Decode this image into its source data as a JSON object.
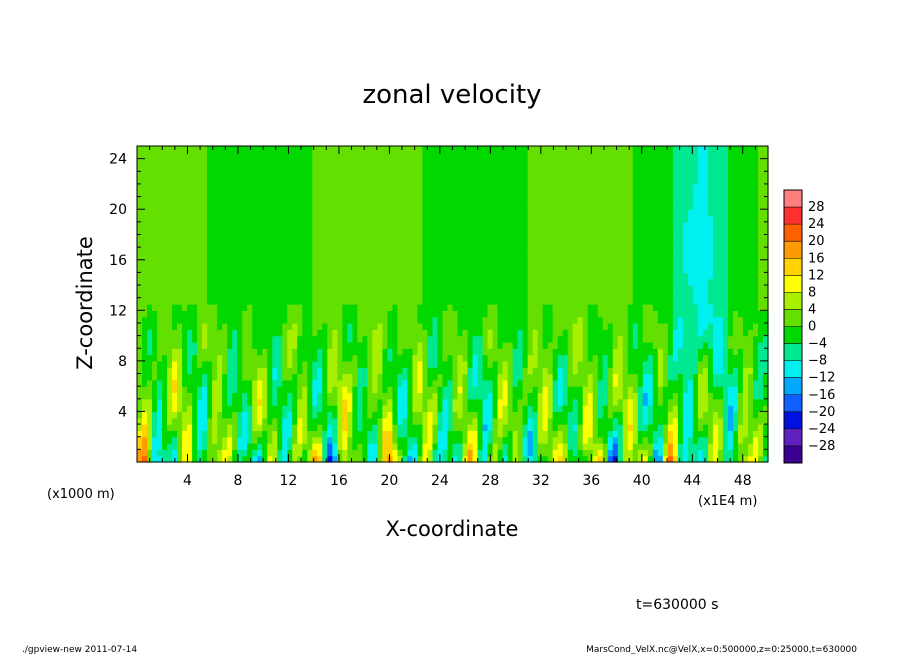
{
  "chart_data": {
    "type": "heatmap",
    "title": "zonal velocity",
    "xlabel": "X-coordinate",
    "ylabel": "Z-coordinate",
    "x_unit_left": "(x1000 m)",
    "x_unit_right": "(x1E4 m)",
    "xlim": [
      0,
      50
    ],
    "ylim": [
      0,
      25
    ],
    "x_ticks": [
      4,
      8,
      12,
      16,
      20,
      24,
      28,
      32,
      36,
      40,
      44,
      48
    ],
    "y_ticks": [
      4,
      8,
      12,
      16,
      20,
      24
    ],
    "colorbar": {
      "levels": [
        28,
        24,
        20,
        16,
        12,
        8,
        4,
        0,
        -4,
        -8,
        -12,
        -16,
        -20,
        -24,
        -28
      ],
      "colors": [
        "#ff7f7f",
        "#ff3030",
        "#ff6000",
        "#ff9a00",
        "#ffd200",
        "#ffff00",
        "#a8f000",
        "#64e000",
        "#00d800",
        "#00e890",
        "#00f0f0",
        "#00a8ff",
        "#1060ff",
        "#0010e0",
        "#6020c0",
        "#3a0090"
      ]
    },
    "time_label": "t=630000 s",
    "field_summary": "near-zero (green) aloft above z=12, strong alternating positive/negative cells below z=12"
  },
  "footer": {
    "left": "./gpview-new   2011-07-14",
    "right": "MarsCond_VelX.nc@VelX,x=0:500000,z=0:25000,t=630000"
  }
}
